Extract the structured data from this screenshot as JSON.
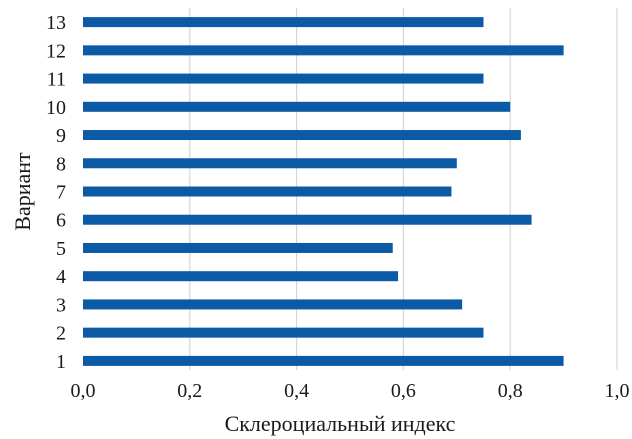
{
  "chart_data": {
    "type": "bar",
    "orientation": "horizontal",
    "categories": [
      "1",
      "2",
      "3",
      "4",
      "5",
      "6",
      "7",
      "8",
      "9",
      "10",
      "11",
      "12",
      "13"
    ],
    "series": [
      {
        "values": [
          0.9,
          0.75,
          0.71,
          0.59,
          0.58,
          0.84,
          0.69,
          0.7,
          0.82,
          0.8,
          0.75,
          0.9,
          0.75
        ]
      }
    ],
    "xlabel": "Склероциальный индекс",
    "ylabel": "Вариант",
    "xlim": [
      0,
      1.0
    ],
    "xticks": [
      "0,0",
      "0,2",
      "0,4",
      "0,6",
      "0,8",
      "1,0"
    ],
    "xtick_values": [
      0,
      0.2,
      0.4,
      0.6,
      0.8,
      1.0
    ],
    "grid": "vertical",
    "legend": "none",
    "bar_color": "#0b5aa6"
  }
}
